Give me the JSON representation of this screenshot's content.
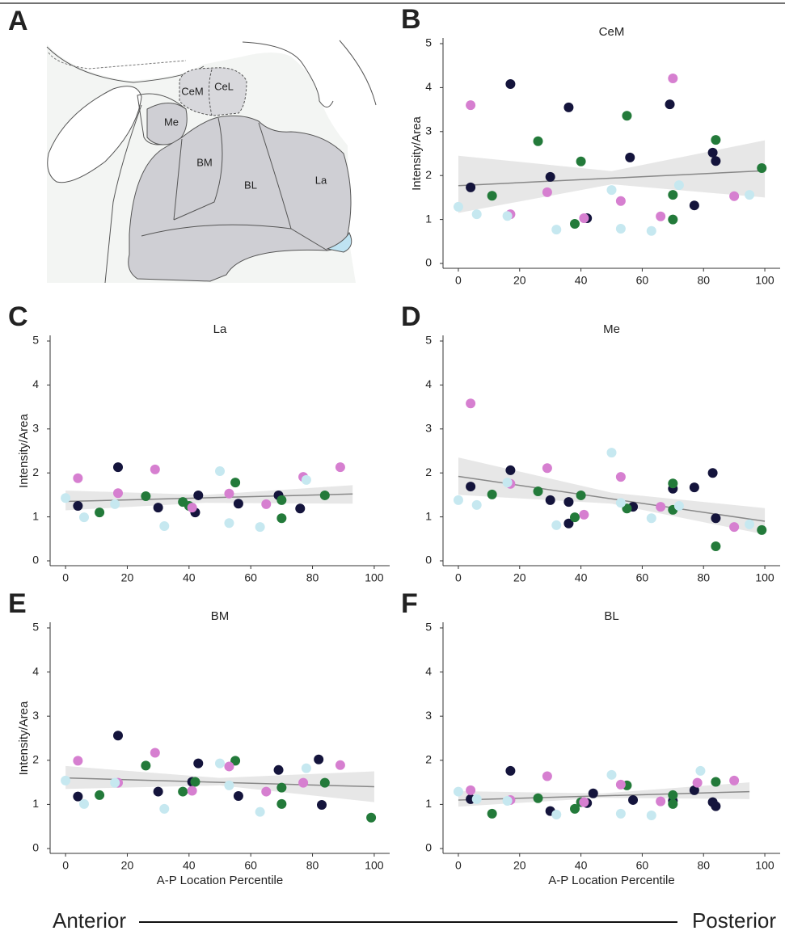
{
  "diagram": {
    "panel": "A",
    "labels": [
      "CeM",
      "CeL",
      "Me",
      "BM",
      "BL",
      "La"
    ]
  },
  "footer": {
    "left": "Anterior",
    "right": "Posterior"
  },
  "chart_data": [
    {
      "type": "scatter",
      "panel": "B",
      "title": "CeM",
      "ylabel": "Intensity/Area",
      "xlim": [
        -5,
        105
      ],
      "xticks": [
        0,
        20,
        40,
        60,
        80,
        100
      ],
      "ylim": [
        0,
        5
      ],
      "yticks": [
        0,
        1,
        2,
        3,
        4,
        5
      ],
      "series": [
        {
          "color": "#14143c",
          "x": [
            4,
            17,
            36,
            30,
            56,
            69,
            83,
            84,
            77,
            42
          ],
          "values": [
            1.73,
            4.08,
            3.55,
            1.97,
            2.41,
            3.62,
            2.52,
            2.33,
            1.32,
            1.03
          ]
        },
        {
          "color": "#237a3a",
          "x": [
            11,
            26,
            40,
            38,
            55,
            70,
            70,
            84,
            99
          ],
          "values": [
            1.54,
            2.78,
            2.32,
            0.9,
            3.36,
            1.56,
            1.0,
            2.81,
            2.17
          ]
        },
        {
          "color": "#d67fd0",
          "x": [
            4,
            17,
            29,
            41,
            53,
            66,
            70,
            90
          ],
          "values": [
            3.6,
            1.12,
            1.62,
            1.03,
            1.42,
            1.07,
            4.21,
            1.53
          ]
        },
        {
          "color": "#c6e8f0",
          "x": [
            0,
            6,
            16,
            32,
            50,
            53,
            63,
            72,
            95
          ],
          "values": [
            1.29,
            1.12,
            1.08,
            0.77,
            1.67,
            0.79,
            0.74,
            1.78,
            1.56
          ]
        }
      ],
      "trend": {
        "x": [
          0,
          100
        ],
        "values": [
          1.77,
          2.11
        ]
      },
      "band": {
        "x": [
          0,
          50,
          100
        ],
        "lower": [
          1.15,
          1.8,
          1.5
        ],
        "upper": [
          2.45,
          2.1,
          2.8
        ]
      }
    },
    {
      "type": "scatter",
      "panel": "C",
      "title": "La",
      "ylabel": "Intensity/Area",
      "xlim": [
        -5,
        105
      ],
      "xticks": [
        0,
        20,
        40,
        60,
        80,
        100
      ],
      "ylim": [
        0,
        5
      ],
      "yticks": [
        0,
        1,
        2,
        3,
        4,
        5
      ],
      "series": [
        {
          "color": "#14143c",
          "x": [
            4,
            17,
            30,
            42,
            43,
            56,
            69,
            76
          ],
          "values": [
            1.25,
            2.13,
            1.21,
            1.1,
            1.49,
            1.3,
            1.49,
            1.19
          ]
        },
        {
          "color": "#237a3a",
          "x": [
            11,
            26,
            38,
            40,
            55,
            70,
            70,
            84
          ],
          "values": [
            1.1,
            1.47,
            1.34,
            1.25,
            1.78,
            0.97,
            1.38,
            1.49
          ]
        },
        {
          "color": "#d67fd0",
          "x": [
            4,
            17,
            29,
            41,
            53,
            65,
            77,
            89
          ],
          "values": [
            1.88,
            1.54,
            2.08,
            1.21,
            1.53,
            1.29,
            1.91,
            2.13
          ]
        },
        {
          "color": "#c6e8f0",
          "x": [
            0,
            6,
            16,
            32,
            50,
            53,
            63,
            78
          ],
          "values": [
            1.43,
            0.99,
            1.29,
            0.79,
            2.04,
            0.86,
            0.77,
            1.84
          ]
        }
      ],
      "trend": {
        "x": [
          0,
          93
        ],
        "values": [
          1.35,
          1.52
        ]
      },
      "band": {
        "x": [
          0,
          45,
          93
        ],
        "lower": [
          1.15,
          1.32,
          1.3
        ],
        "upper": [
          1.6,
          1.5,
          1.72
        ]
      }
    },
    {
      "type": "scatter",
      "panel": "D",
      "title": "Me",
      "xlim": [
        -5,
        105
      ],
      "xticks": [
        0,
        20,
        40,
        60,
        80,
        100
      ],
      "ylim": [
        0,
        5
      ],
      "yticks": [
        0,
        1,
        2,
        3,
        4,
        5
      ],
      "series": [
        {
          "color": "#14143c",
          "x": [
            4,
            17,
            30,
            36,
            36,
            57,
            70,
            77,
            83,
            84
          ],
          "values": [
            1.69,
            2.06,
            1.38,
            0.85,
            1.34,
            1.23,
            1.64,
            1.67,
            2.0,
            0.97
          ]
        },
        {
          "color": "#237a3a",
          "x": [
            11,
            26,
            40,
            38,
            55,
            70,
            70,
            84,
            99
          ],
          "values": [
            1.51,
            1.58,
            1.49,
            0.99,
            1.19,
            1.76,
            1.16,
            0.33,
            0.7
          ]
        },
        {
          "color": "#d67fd0",
          "x": [
            4,
            17,
            29,
            41,
            53,
            66,
            90
          ],
          "values": [
            3.58,
            1.75,
            2.11,
            1.05,
            1.91,
            1.23,
            0.77
          ]
        },
        {
          "color": "#c6e8f0",
          "x": [
            0,
            6,
            16,
            32,
            50,
            53,
            63,
            72,
            95
          ],
          "values": [
            1.38,
            1.27,
            1.78,
            0.81,
            2.46,
            1.32,
            0.97,
            1.25,
            0.83
          ]
        }
      ],
      "trend": {
        "x": [
          0,
          100
        ],
        "values": [
          1.92,
          0.9
        ]
      },
      "band": {
        "x": [
          0,
          50,
          100
        ],
        "lower": [
          1.5,
          1.3,
          0.6
        ],
        "upper": [
          2.35,
          1.55,
          1.2
        ]
      }
    },
    {
      "type": "scatter",
      "panel": "E",
      "title": "BM",
      "ylabel": "Intensity/Area",
      "xlabel": "A-P Location Percentile",
      "xlim": [
        -5,
        105
      ],
      "xticks": [
        0,
        20,
        40,
        60,
        80,
        100
      ],
      "ylim": [
        0,
        5
      ],
      "yticks": [
        0,
        1,
        2,
        3,
        4,
        5
      ],
      "series": [
        {
          "color": "#14143c",
          "x": [
            4,
            17,
            30,
            43,
            56,
            69,
            82,
            83,
            41
          ],
          "values": [
            1.18,
            2.56,
            1.29,
            1.93,
            1.19,
            1.78,
            2.02,
            0.99,
            1.51
          ]
        },
        {
          "color": "#237a3a",
          "x": [
            11,
            26,
            38,
            42,
            55,
            70,
            70,
            84,
            99
          ],
          "values": [
            1.21,
            1.88,
            1.29,
            1.51,
            1.99,
            1.01,
            1.38,
            1.49,
            0.7
          ]
        },
        {
          "color": "#d67fd0",
          "x": [
            4,
            17,
            29,
            41,
            53,
            65,
            77,
            89
          ],
          "values": [
            1.99,
            1.49,
            2.17,
            1.31,
            1.86,
            1.29,
            1.49,
            1.89
          ]
        },
        {
          "color": "#c6e8f0",
          "x": [
            0,
            6,
            16,
            32,
            50,
            53,
            63,
            78
          ],
          "values": [
            1.54,
            1.01,
            1.49,
            0.9,
            1.93,
            1.43,
            0.83,
            1.82
          ]
        }
      ],
      "trend": {
        "x": [
          0,
          100
        ],
        "values": [
          1.6,
          1.4
        ]
      },
      "band": {
        "x": [
          0,
          50,
          100
        ],
        "lower": [
          1.35,
          1.43,
          1.05
        ],
        "upper": [
          1.87,
          1.6,
          1.75
        ]
      }
    },
    {
      "type": "scatter",
      "panel": "F",
      "title": "BL",
      "xlabel": "A-P Location Percentile",
      "xlim": [
        -5,
        105
      ],
      "xticks": [
        0,
        20,
        40,
        60,
        80,
        100
      ],
      "ylim": [
        0,
        5
      ],
      "yticks": [
        0,
        1,
        2,
        3,
        4,
        5
      ],
      "series": [
        {
          "color": "#14143c",
          "x": [
            4,
            17,
            30,
            42,
            44,
            57,
            70,
            77,
            83,
            84
          ],
          "values": [
            1.12,
            1.76,
            0.85,
            1.03,
            1.25,
            1.1,
            1.08,
            1.32,
            1.05,
            0.96
          ]
        },
        {
          "color": "#237a3a",
          "x": [
            11,
            26,
            38,
            40,
            55,
            70,
            70,
            84
          ],
          "values": [
            0.79,
            1.14,
            0.9,
            1.05,
            1.43,
            1.01,
            1.21,
            1.51
          ]
        },
        {
          "color": "#d67fd0",
          "x": [
            4,
            17,
            29,
            41,
            53,
            66,
            78,
            90
          ],
          "values": [
            1.32,
            1.1,
            1.64,
            1.05,
            1.45,
            1.07,
            1.49,
            1.54
          ]
        },
        {
          "color": "#c6e8f0",
          "x": [
            0,
            6,
            16,
            32,
            50,
            53,
            63,
            79
          ],
          "values": [
            1.29,
            1.12,
            1.08,
            0.77,
            1.67,
            0.79,
            0.75,
            1.76
          ]
        }
      ],
      "trend": {
        "x": [
          0,
          95
        ],
        "values": [
          1.1,
          1.29
        ]
      },
      "band": {
        "x": [
          0,
          47,
          95
        ],
        "lower": [
          0.95,
          1.15,
          1.12
        ],
        "upper": [
          1.3,
          1.25,
          1.5
        ]
      }
    }
  ]
}
